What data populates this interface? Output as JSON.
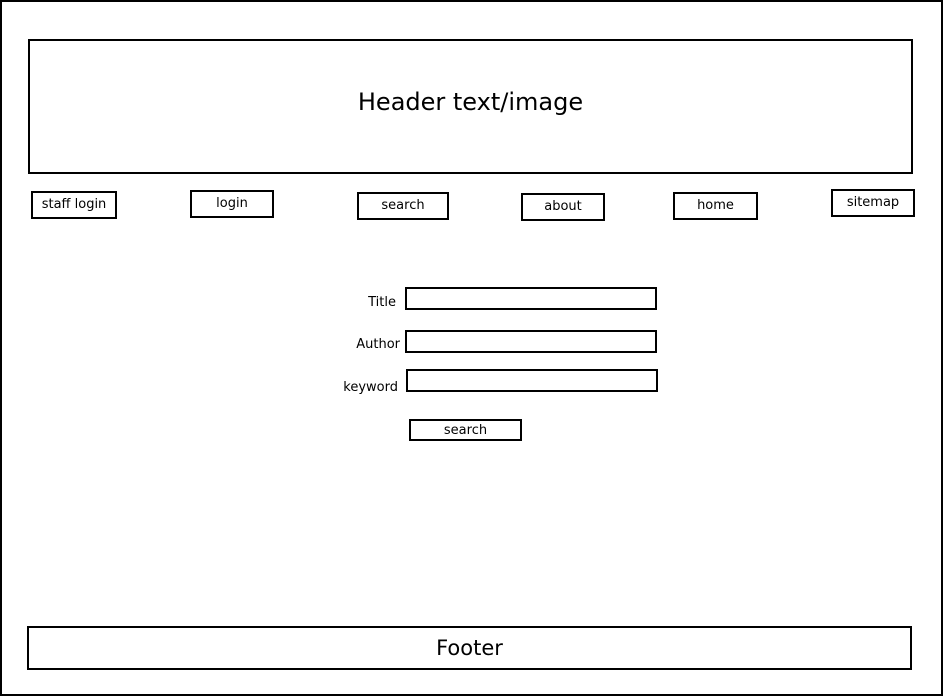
{
  "header": {
    "text": "Header text/image"
  },
  "nav": {
    "items": [
      {
        "label": "staff login"
      },
      {
        "label": "login"
      },
      {
        "label": "search"
      },
      {
        "label": "about"
      },
      {
        "label": "home"
      },
      {
        "label": "sitemap"
      }
    ]
  },
  "search_form": {
    "fields": [
      {
        "label": "Title",
        "value": ""
      },
      {
        "label": "Author",
        "value": ""
      },
      {
        "label": "keyword",
        "value": ""
      }
    ],
    "submit_label": "search"
  },
  "footer": {
    "text": "Footer"
  }
}
